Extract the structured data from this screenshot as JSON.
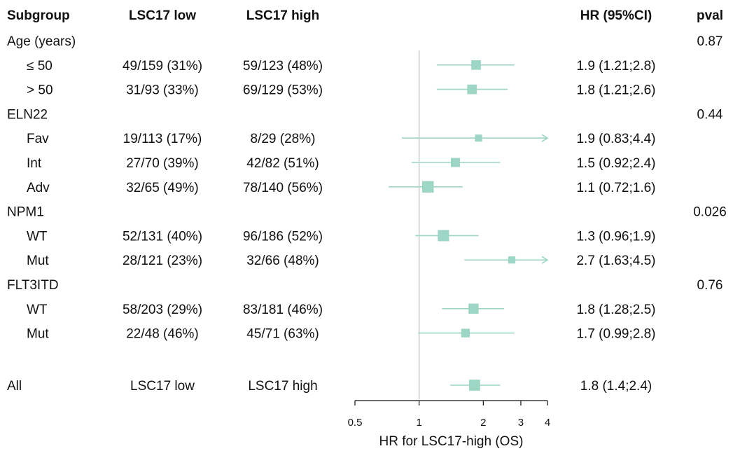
{
  "chart_data": {
    "type": "forest",
    "headers": {
      "subgroup": "Subgroup",
      "low": "LSC17 low",
      "high": "LSC17 high",
      "hr": "HR (95%CI)",
      "pval": "pval"
    },
    "rows": [
      {
        "label": "Age (years)",
        "group": true,
        "pval": "0.87"
      },
      {
        "label": "≤ 50",
        "low": "49/159 (31%)",
        "high": "59/123 (48%)",
        "hr_text": "1.9 (1.21;2.8)",
        "hr": 1.85,
        "ci": [
          1.21,
          2.8
        ],
        "weight": 0.55
      },
      {
        "label": "> 50",
        "low": "31/93 (33%)",
        "high": "69/129 (53%)",
        "hr_text": "1.8 (1.21;2.6)",
        "hr": 1.77,
        "ci": [
          1.21,
          2.6
        ],
        "weight": 0.55
      },
      {
        "label": "ELN22",
        "group": true,
        "pval": "0.44"
      },
      {
        "label": "Fav",
        "low": "19/113 (17%)",
        "high": "8/29 (28%)",
        "hr_text": "1.9 (0.83;4.4)",
        "hr": 1.9,
        "ci": [
          0.83,
          4.4
        ],
        "weight": 0.3
      },
      {
        "label": "Int",
        "low": "27/70 (39%)",
        "high": "42/82 (51%)",
        "hr_text": "1.5 (0.92;2.4)",
        "hr": 1.48,
        "ci": [
          0.92,
          2.4
        ],
        "weight": 0.5
      },
      {
        "label": "Adv",
        "low": "32/65 (49%)",
        "high": "78/140 (56%)",
        "hr_text": "1.1 (0.72;1.6)",
        "hr": 1.1,
        "ci": [
          0.72,
          1.6
        ],
        "weight": 0.75
      },
      {
        "label": "NPM1",
        "group": true,
        "pval": "0.026"
      },
      {
        "label": "WT",
        "low": "52/131 (40%)",
        "high": "96/186 (52%)",
        "hr_text": "1.3 (0.96;1.9)",
        "hr": 1.3,
        "ci": [
          0.96,
          1.9
        ],
        "weight": 0.72
      },
      {
        "label": "Mut",
        "low": "28/121 (23%)",
        "high": "32/66 (48%)",
        "hr_text": "2.7 (1.63;4.5)",
        "hr": 2.72,
        "ci": [
          1.63,
          4.5
        ],
        "weight": 0.3
      },
      {
        "label": "FLT3ITD",
        "group": true,
        "pval": "0.76"
      },
      {
        "label": "WT",
        "low": "58/203 (29%)",
        "high": "83/181 (46%)",
        "hr_text": "1.8 (1.28;2.5)",
        "hr": 1.8,
        "ci": [
          1.28,
          2.5
        ],
        "weight": 0.6
      },
      {
        "label": "Mut",
        "low": "22/48 (46%)",
        "high": "45/71 (63%)",
        "hr_text": "1.7 (0.99;2.8)",
        "hr": 1.65,
        "ci": [
          0.99,
          2.8
        ],
        "weight": 0.45
      },
      {
        "label": "All",
        "low": "LSC17 low",
        "high": "LSC17 high",
        "hr_text": "1.8 (1.4;2.4)",
        "hr": 1.82,
        "ci": [
          1.4,
          2.4
        ],
        "weight": 0.7,
        "overall": true
      }
    ],
    "xaxis": {
      "label": "HR for LSC17-high (OS)",
      "scale": "log",
      "range": [
        0.5,
        4
      ],
      "ticks": [
        0.5,
        1,
        2,
        3,
        4
      ],
      "tick_labels": [
        "0.5",
        "1",
        "2",
        "3",
        "4"
      ],
      "reference_line": 1
    },
    "colors": {
      "marker": "#9dd6c5",
      "ref_line": "#cccccc",
      "text": "#111111"
    }
  }
}
